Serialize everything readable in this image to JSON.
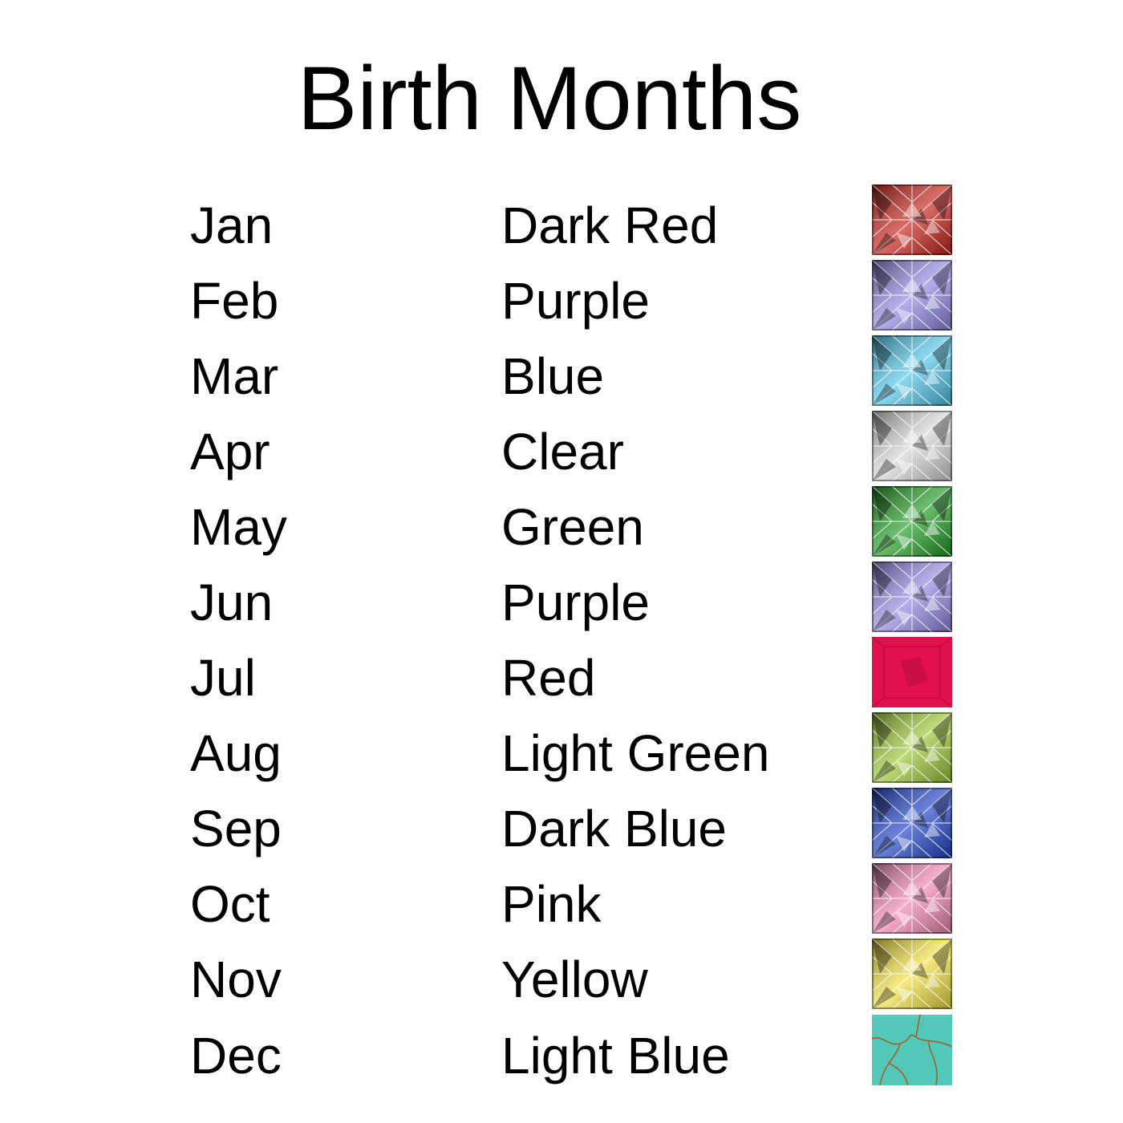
{
  "title": "Birth Months",
  "rows": [
    {
      "month": "Jan",
      "color": "Dark Red",
      "gem_hex": "#c81e16",
      "gem_style": "faceted"
    },
    {
      "month": "Feb",
      "color": "Purple",
      "gem_hex": "#8c88e2",
      "gem_style": "faceted"
    },
    {
      "month": "Mar",
      "color": "Blue",
      "gem_hex": "#4ec6ea",
      "gem_style": "faceted"
    },
    {
      "month": "Apr",
      "color": "Clear",
      "gem_hex": "#d6d6d6",
      "gem_style": "faceted"
    },
    {
      "month": "May",
      "color": "Green",
      "gem_hex": "#1e9c22",
      "gem_style": "faceted"
    },
    {
      "month": "Jun",
      "color": "Purple",
      "gem_hex": "#8c88e2",
      "gem_style": "faceted"
    },
    {
      "month": "Jul",
      "color": "Red",
      "gem_hex": "#e2104c",
      "gem_style": "smooth"
    },
    {
      "month": "Aug",
      "color": "Light Green",
      "gem_hex": "#9ac832",
      "gem_style": "faceted"
    },
    {
      "month": "Sep",
      "color": "Dark Blue",
      "gem_hex": "#1c40c8",
      "gem_style": "faceted"
    },
    {
      "month": "Oct",
      "color": "Pink",
      "gem_hex": "#f284b4",
      "gem_style": "faceted"
    },
    {
      "month": "Nov",
      "color": "Yellow",
      "gem_hex": "#f2e240",
      "gem_style": "faceted"
    },
    {
      "month": "Dec",
      "color": "Light Blue",
      "gem_hex": "#52c8b8",
      "gem_style": "turquoise"
    }
  ]
}
